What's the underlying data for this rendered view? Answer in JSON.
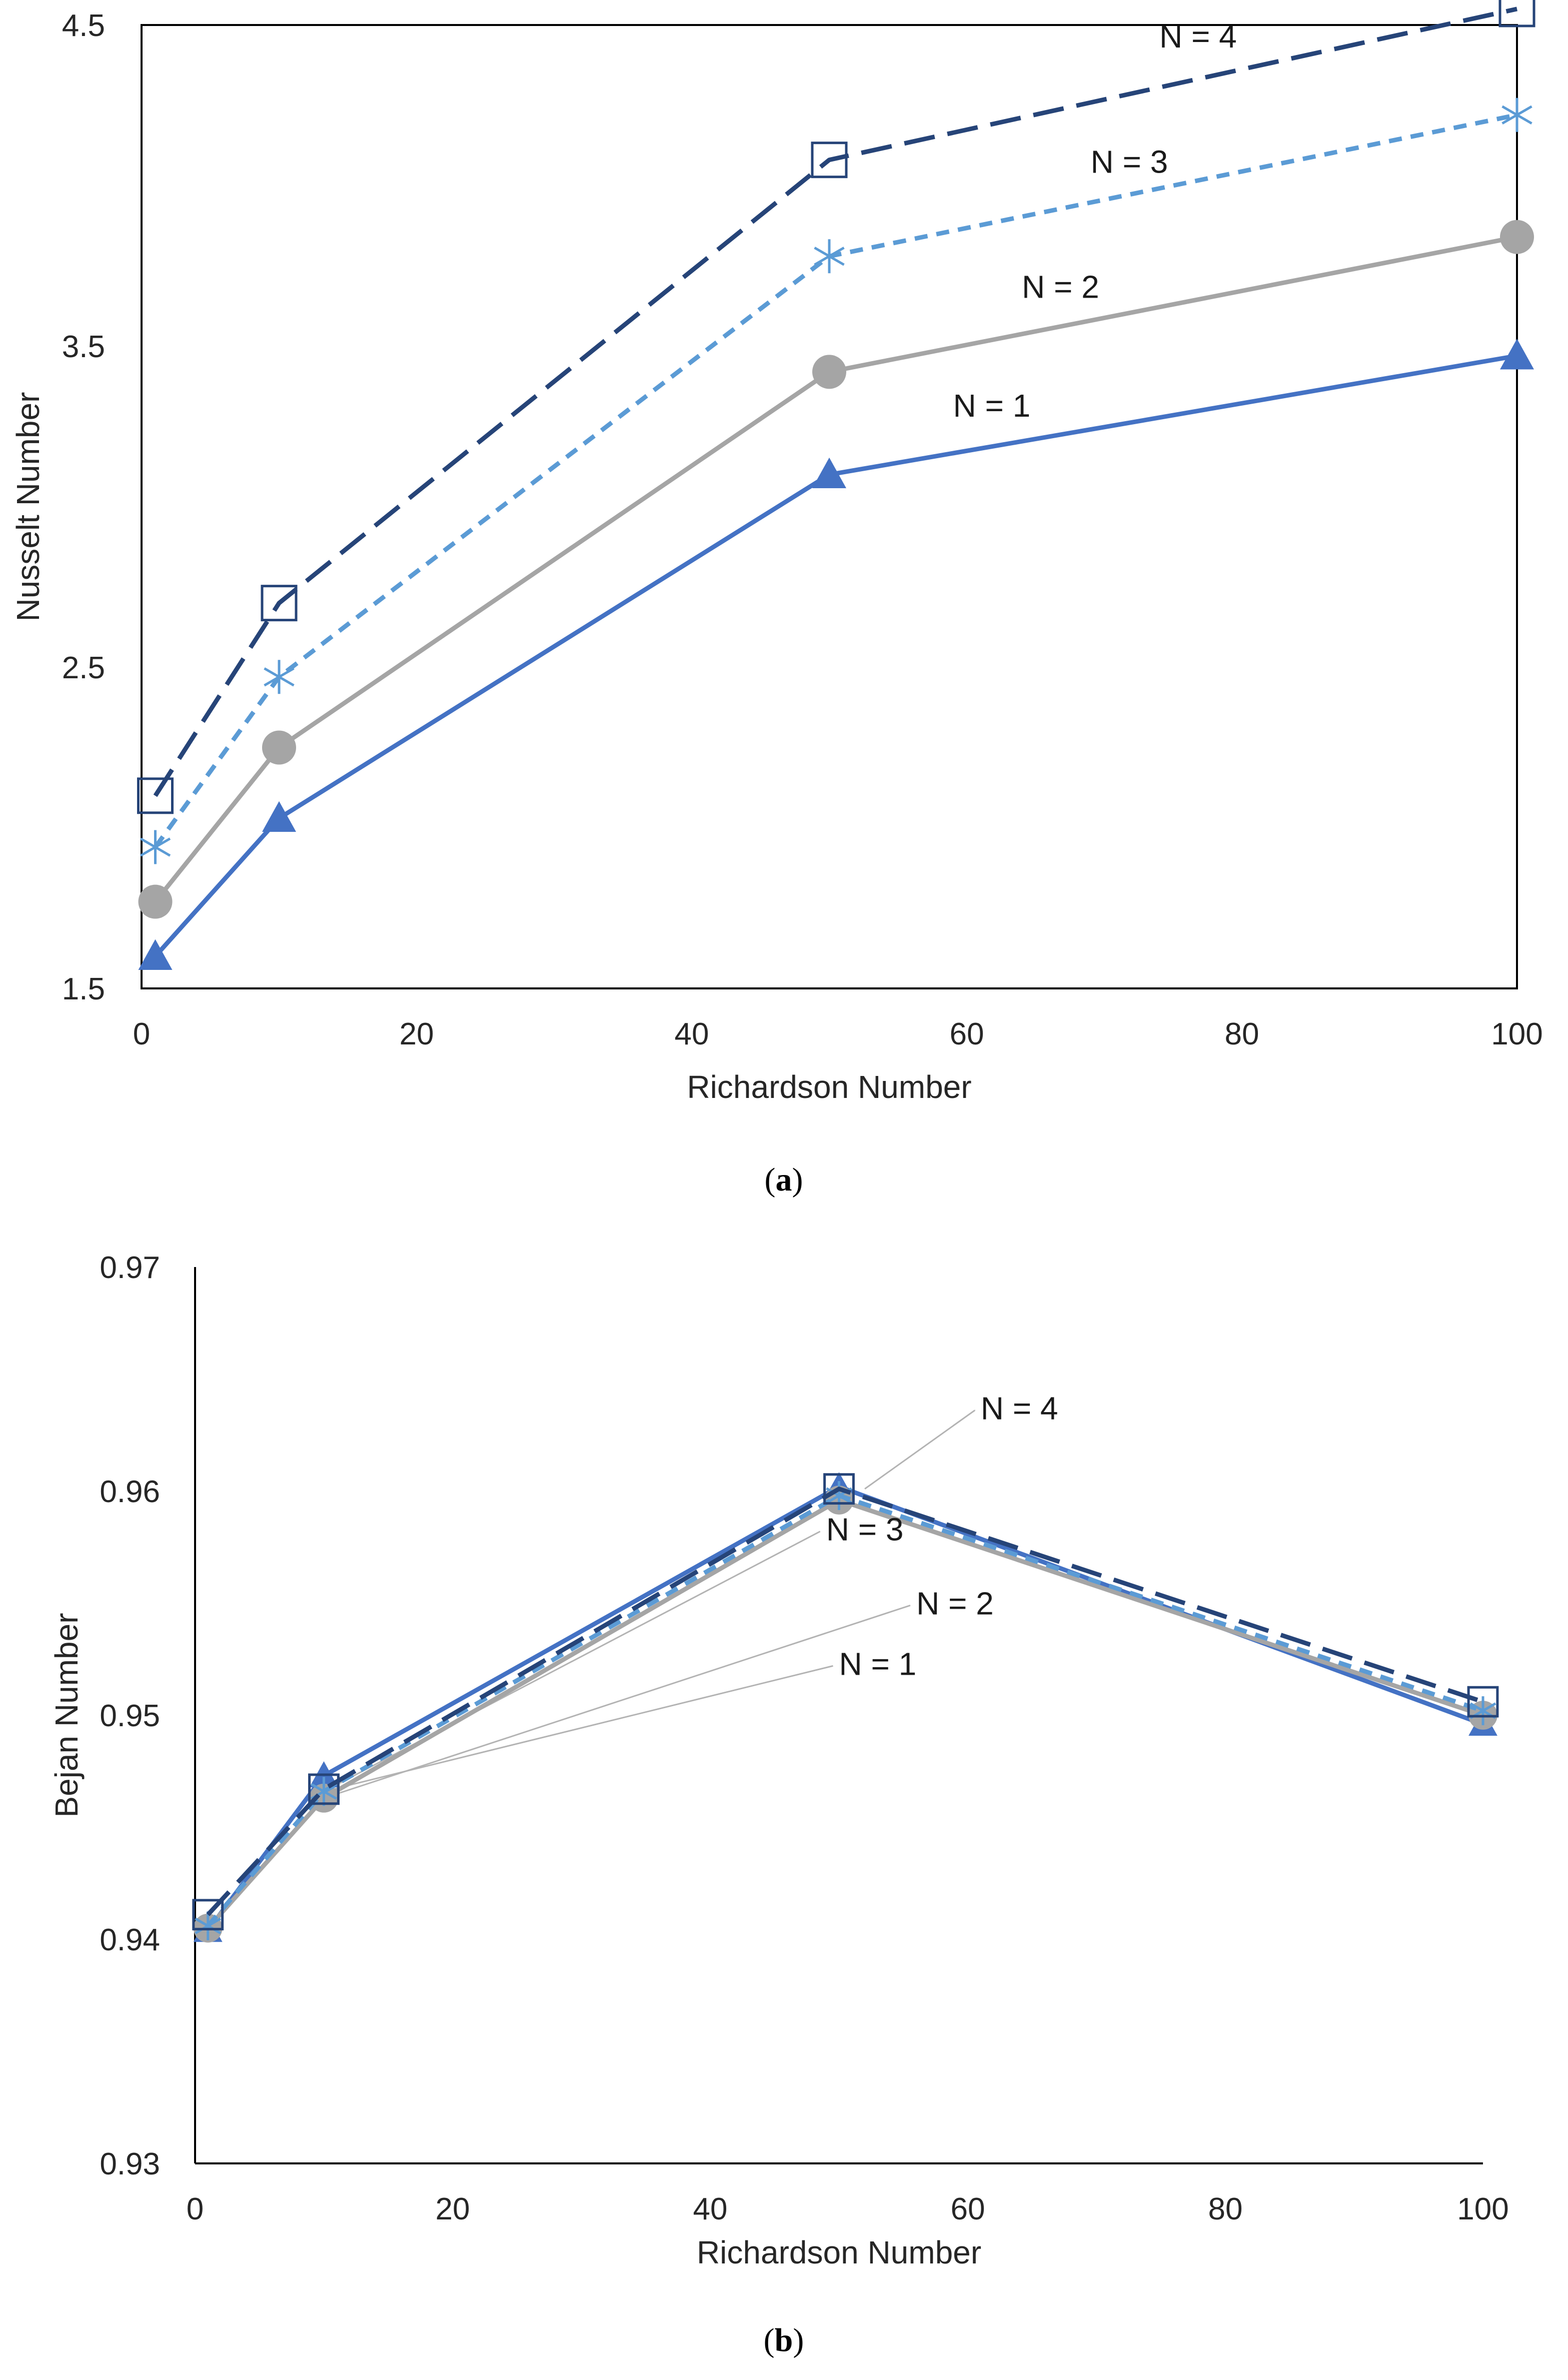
{
  "chart_data": [
    {
      "type": "line",
      "id": "a",
      "caption_letter": "a",
      "xlabel": "Richardson Number",
      "ylabel": "Nusselt Number",
      "xlim": [
        0,
        100
      ],
      "ylim": [
        1.5,
        4.5
      ],
      "xticks": [
        0,
        20,
        40,
        60,
        80,
        100
      ],
      "yticks": [
        1.5,
        2.5,
        3.5,
        4.5
      ],
      "ytick_labels": [
        "1.5",
        "2.5",
        "3.5",
        "4.5"
      ],
      "x": [
        1,
        10,
        50,
        100
      ],
      "series": [
        {
          "name": "N = 1",
          "values": [
            1.6,
            2.03,
            3.1,
            3.47
          ],
          "color": "#4472c4",
          "marker": "triangle",
          "dash": "solid"
        },
        {
          "name": "N = 2",
          "values": [
            1.77,
            2.25,
            3.42,
            3.84
          ],
          "color": "#a5a5a5",
          "marker": "circle",
          "dash": "solid"
        },
        {
          "name": "N = 3",
          "values": [
            1.94,
            2.47,
            3.78,
            4.22
          ],
          "color": "#5b9bd5",
          "marker": "star",
          "dash": "short-dash"
        },
        {
          "name": "N = 4",
          "values": [
            2.1,
            2.7,
            4.08,
            4.55
          ],
          "color": "#264478",
          "marker": "square",
          "dash": "long-dash"
        }
      ],
      "annotations": [
        {
          "text": "N = 4",
          "x": 74,
          "y": 4.43
        },
        {
          "text": "N = 3",
          "x": 69,
          "y": 4.04
        },
        {
          "text": "N = 2",
          "x": 64,
          "y": 3.65
        },
        {
          "text": "N = 1",
          "x": 59,
          "y": 3.28
        }
      ]
    },
    {
      "type": "line",
      "id": "b",
      "caption_letter": "b",
      "xlabel": "Richardson Number",
      "ylabel": "Bejan  Number",
      "xlim": [
        0,
        100
      ],
      "ylim": [
        0.93,
        0.97
      ],
      "xticks": [
        0,
        20,
        40,
        60,
        80,
        100
      ],
      "yticks": [
        0.93,
        0.94,
        0.95,
        0.96,
        0.97
      ],
      "ytick_labels": [
        "0.93",
        "0.94",
        "0.95",
        "0.96",
        "0.97"
      ],
      "x": [
        1,
        10,
        50,
        100
      ],
      "series": [
        {
          "name": "N = 1",
          "values": [
            0.9404,
            0.9473,
            0.9602,
            0.9496
          ],
          "color": "#4472c4",
          "marker": "triangle",
          "dash": "solid"
        },
        {
          "name": "N = 2",
          "values": [
            0.9405,
            0.9463,
            0.9596,
            0.95
          ],
          "color": "#a5a5a5",
          "marker": "circle",
          "dash": "solid"
        },
        {
          "name": "N = 3",
          "values": [
            0.9406,
            0.9466,
            0.9598,
            0.9502
          ],
          "color": "#5b9bd5",
          "marker": "star",
          "dash": "short-dash"
        },
        {
          "name": "N = 4",
          "values": [
            0.9411,
            0.9467,
            0.9601,
            0.9506
          ],
          "color": "#264478",
          "marker": "square",
          "dash": "long-dash"
        }
      ],
      "annotations": [
        {
          "text": "N = 4",
          "x": 61,
          "y": 0.9632,
          "anchor": {
            "x": 52,
            "y": 0.9601
          }
        },
        {
          "text": "N = 3",
          "x": 49,
          "y": 0.9578,
          "anchor": {
            "x": 10,
            "y": 0.9466
          }
        },
        {
          "text": "N = 2",
          "x": 56,
          "y": 0.9545,
          "anchor": {
            "x": 10,
            "y": 0.9463
          }
        },
        {
          "text": "N = 1",
          "x": 50,
          "y": 0.9518,
          "anchor": {
            "x": 10,
            "y": 0.9466
          }
        }
      ]
    }
  ]
}
